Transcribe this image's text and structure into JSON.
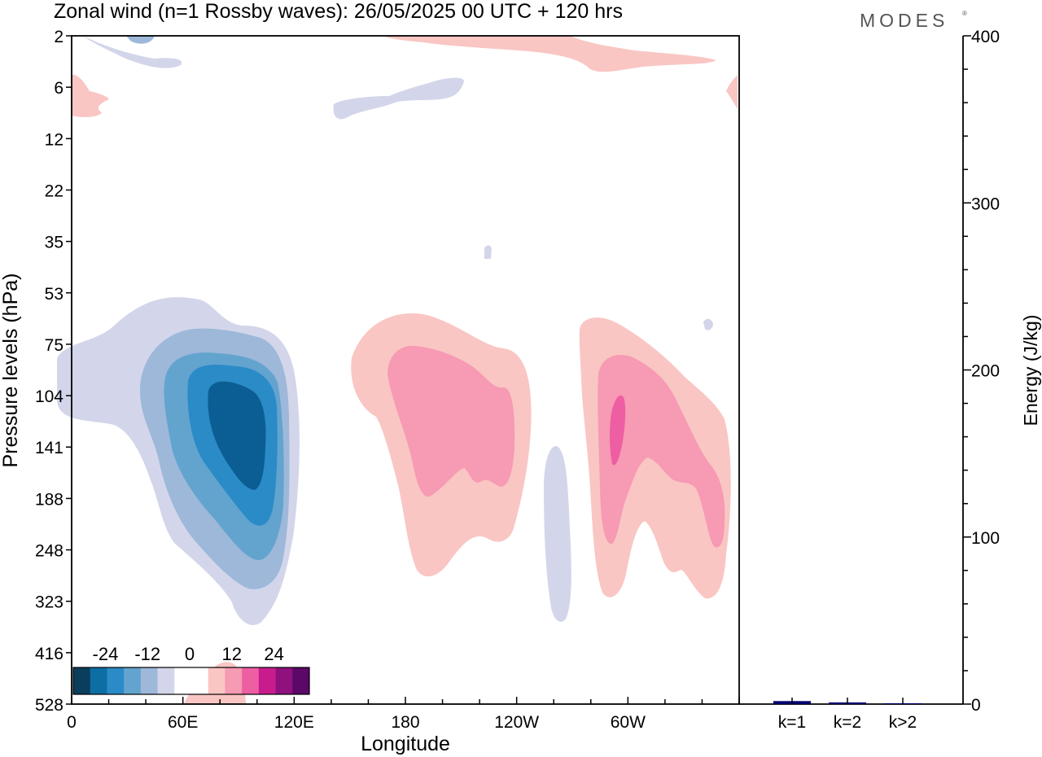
{
  "title": "Zonal wind (n=1 Rossby waves):  26/05/2025  00 UTC  + 120 hrs",
  "logo_text": "MODES",
  "chart_data": [
    {
      "type": "heatmap",
      "xlabel": "Longitude",
      "ylabel": "Pressure levels (hPa)",
      "x_ticks": [
        "0",
        "60E",
        "120E",
        "180",
        "120W",
        "60W"
      ],
      "y_ticks": [
        "2",
        "6",
        "12",
        "22",
        "35",
        "53",
        "75",
        "104",
        "141",
        "188",
        "248",
        "323",
        "416",
        "528"
      ],
      "colorbar": {
        "tick_labels": [
          "-24",
          "-12",
          "0",
          "12",
          "24"
        ],
        "colors": [
          "#0b3d5c",
          "#0d6ea4",
          "#2a8bc7",
          "#63a4cf",
          "#9eb8da",
          "#d3d6ea",
          "#ffffff",
          "#ffffff",
          "#f9c6c3",
          "#f79ab3",
          "#ee5ea3",
          "#c81c8d",
          "#8f117e",
          "#5b0868"
        ]
      },
      "features": [
        {
          "sign": "negative",
          "min_level": -24,
          "lon_center": 97,
          "pressure_center": 141
        },
        {
          "sign": "positive",
          "min_level": 12,
          "lon_center": 190,
          "pressure_center": 141
        },
        {
          "sign": "positive",
          "min_level": 18,
          "lon_center": 292,
          "pressure_center": 141
        },
        {
          "sign": "negative",
          "min_level": -6,
          "lon_center": 225,
          "pressure_center": 248
        }
      ]
    },
    {
      "type": "bar",
      "ylabel": "Energy (J/kg)",
      "categories": [
        "k=1",
        "k=2",
        "k>2"
      ],
      "values": [
        1.8,
        1.0,
        0.5
      ],
      "ylim": [
        0,
        400
      ],
      "y_ticks": [
        "0",
        "100",
        "200",
        "300",
        "400"
      ],
      "bar_color": "#00006e"
    }
  ]
}
